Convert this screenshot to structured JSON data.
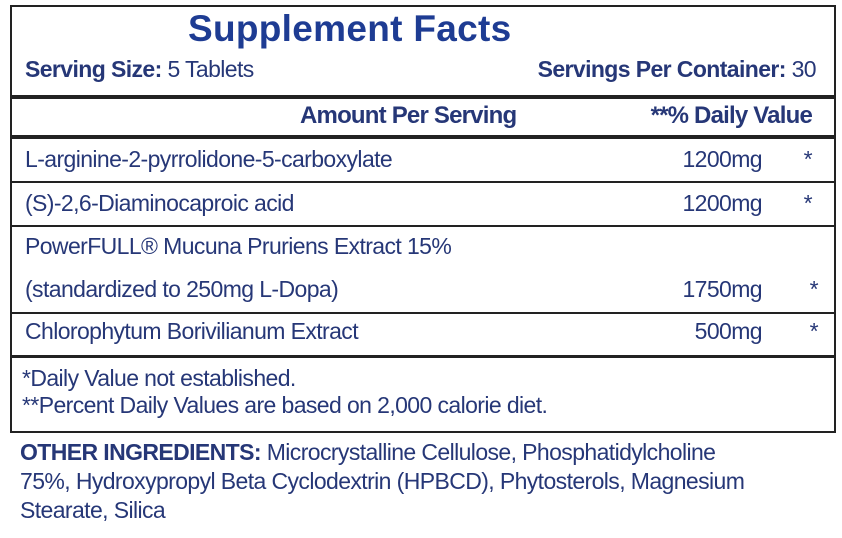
{
  "title": "Supplement Facts",
  "serving_size": {
    "label": "Serving Size:",
    "value": "5 Tablets"
  },
  "servings_per_container": {
    "label": "Servings Per Container:",
    "value": "30"
  },
  "columns": {
    "amount": "Amount Per Serving",
    "dv": "**% Daily Value"
  },
  "rows": [
    {
      "name": "L-arginine-2-pyrrolidone-5-carboxylate",
      "amount": "1200mg",
      "dv": "*"
    },
    {
      "name": "(S)-2,6-Diaminocaproic acid",
      "amount": "1200mg",
      "dv": "*"
    },
    {
      "name": "PowerFULL® Mucuna Pruriens Extract 15%",
      "name2": "(standardized to 250mg L-Dopa)",
      "amount": "1750mg",
      "dv": "*"
    },
    {
      "name": "Chlorophytum Borivilianum Extract",
      "amount": "500mg",
      "dv": "*"
    }
  ],
  "footnotes": [
    "*Daily Value not established.",
    "**Percent Daily Values are based on 2,000 calorie diet."
  ],
  "other_ingredients": {
    "label": "OTHER INGREDIENTS:",
    "line1": "Microcrystalline Cellulose, Phosphatidylcholine",
    "line2": "75%, Hydroxypropyl Beta Cyclodextrin (HPBCD), Phytosterols, Magnesium",
    "line3": "Stearate, Silica"
  }
}
